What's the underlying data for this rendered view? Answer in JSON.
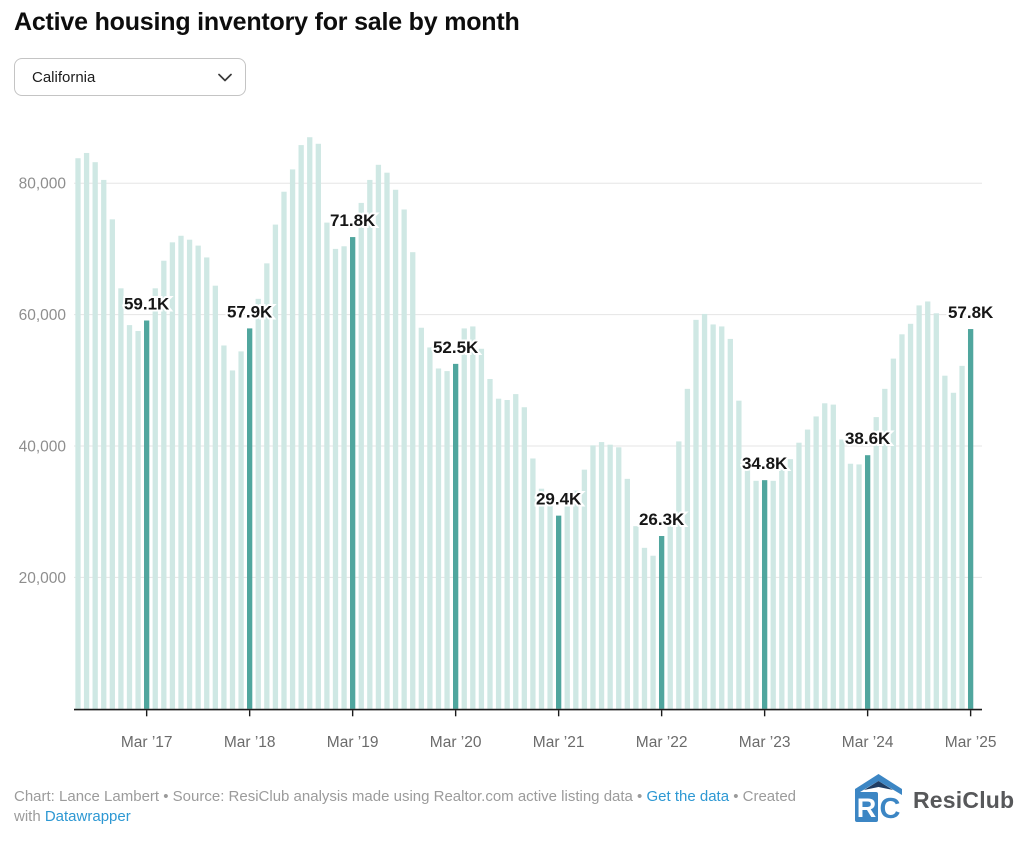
{
  "title": "Active housing inventory for sale by month",
  "region_selector": {
    "value": "California"
  },
  "chart_data": {
    "type": "bar",
    "title": "Active housing inventory for sale by month",
    "unit": "active listings for sale",
    "highlight_rule": "March bars shown in dark teal with value labels",
    "grid": true,
    "legend": null,
    "ylim": [
      0,
      91000
    ],
    "x": [
      "Jul 2016",
      "Aug 2016",
      "Sep 2016",
      "Oct 2016",
      "Nov 2016",
      "Dec 2016",
      "Jan 2017",
      "Feb 2017",
      "Mar 2017",
      "Apr 2017",
      "May 2017",
      "Jun 2017",
      "Jul 2017",
      "Aug 2017",
      "Sep 2017",
      "Oct 2017",
      "Nov 2017",
      "Dec 2017",
      "Jan 2018",
      "Feb 2018",
      "Mar 2018",
      "Apr 2018",
      "May 2018",
      "Jun 2018",
      "Jul 2018",
      "Aug 2018",
      "Sep 2018",
      "Oct 2018",
      "Nov 2018",
      "Dec 2018",
      "Jan 2019",
      "Feb 2019",
      "Mar 2019",
      "Apr 2019",
      "May 2019",
      "Jun 2019",
      "Jul 2019",
      "Aug 2019",
      "Sep 2019",
      "Oct 2019",
      "Nov 2019",
      "Dec 2019",
      "Jan 2020",
      "Feb 2020",
      "Mar 2020",
      "Apr 2020",
      "May 2020",
      "Jun 2020",
      "Jul 2020",
      "Aug 2020",
      "Sep 2020",
      "Oct 2020",
      "Nov 2020",
      "Dec 2020",
      "Jan 2021",
      "Feb 2021",
      "Mar 2021",
      "Apr 2021",
      "May 2021",
      "Jun 2021",
      "Jul 2021",
      "Aug 2021",
      "Sep 2021",
      "Oct 2021",
      "Nov 2021",
      "Dec 2021",
      "Jan 2022",
      "Feb 2022",
      "Mar 2022",
      "Apr 2022",
      "May 2022",
      "Jun 2022",
      "Jul 2022",
      "Aug 2022",
      "Sep 2022",
      "Oct 2022",
      "Nov 2022",
      "Dec 2022",
      "Jan 2023",
      "Feb 2023",
      "Mar 2023",
      "Apr 2023",
      "May 2023",
      "Jun 2023",
      "Jul 2023",
      "Aug 2023",
      "Sep 2023",
      "Oct 2023",
      "Nov 2023",
      "Dec 2023",
      "Jan 2024",
      "Feb 2024",
      "Mar 2024",
      "Apr 2024",
      "May 2024",
      "Jun 2024",
      "Jul 2024",
      "Aug 2024",
      "Sep 2024",
      "Oct 2024",
      "Nov 2024",
      "Dec 2024",
      "Jan 2025",
      "Feb 2025",
      "Mar 2025"
    ],
    "values": [
      83800,
      84600,
      83200,
      80500,
      74500,
      64000,
      58400,
      57500,
      59100,
      64000,
      68200,
      71000,
      72000,
      71400,
      70500,
      68700,
      64400,
      55300,
      51500,
      54400,
      57900,
      62400,
      67800,
      73700,
      78700,
      82100,
      85800,
      87000,
      86000,
      74000,
      70000,
      70400,
      71800,
      77000,
      80500,
      82800,
      81600,
      79000,
      76000,
      69500,
      58000,
      55000,
      51800,
      51400,
      52500,
      57900,
      58200,
      54800,
      50200,
      47200,
      47000,
      47900,
      45900,
      38100,
      33500,
      31200,
      29400,
      31800,
      33200,
      36400,
      40100,
      40600,
      40200,
      39800,
      35000,
      27800,
      24500,
      23300,
      26300,
      29000,
      40700,
      48700,
      59200,
      60100,
      58500,
      58200,
      56300,
      46900,
      38400,
      34700,
      34800,
      34700,
      36400,
      38000,
      40500,
      42500,
      44500,
      46500,
      46300,
      41000,
      37300,
      37200,
      38600,
      44400,
      48700,
      53300,
      57000,
      58600,
      61400,
      62000,
      60200,
      50700,
      48100,
      52200,
      57800
    ],
    "bar_labels": [
      {
        "month": "Mar 2017",
        "label": "59.1K"
      },
      {
        "month": "Mar 2018",
        "label": "57.9K"
      },
      {
        "month": "Mar 2019",
        "label": "71.8K"
      },
      {
        "month": "Mar 2020",
        "label": "52.5K"
      },
      {
        "month": "Mar 2021",
        "label": "29.4K"
      },
      {
        "month": "Mar 2022",
        "label": "26.3K"
      },
      {
        "month": "Mar 2023",
        "label": "34.8K"
      },
      {
        "month": "Mar 2024",
        "label": "38.6K"
      },
      {
        "month": "Mar 2025",
        "label": "57.8K"
      }
    ],
    "x_tick_labels": [
      "Mar ’17",
      "Mar ’18",
      "Mar ’19",
      "Mar ’20",
      "Mar ’21",
      "Mar ’22",
      "Mar ’23",
      "Mar ’24",
      "Mar ’25"
    ],
    "y_tick_labels": [
      {
        "value": 20000,
        "label": "20,000"
      },
      {
        "value": 40000,
        "label": "40,000"
      },
      {
        "value": 60000,
        "label": "60,000"
      },
      {
        "value": 80000,
        "label": "80,000"
      }
    ],
    "colors": {
      "bar": "#cfe8e4",
      "highlight": "#50a69e",
      "grid": "#e5e5e5",
      "axis": "#1a1a1a",
      "value_label": "#161616",
      "x_tick_label": "#6b6b6b",
      "y_tick_label": "#8e8e8e"
    }
  },
  "footer": {
    "parts": [
      {
        "text": "Chart: Lance Lambert • Source: ResiClub analysis made using Realtor.com active listing data • "
      },
      {
        "text": "Get the data",
        "link": true,
        "name": "get-the-data-link"
      },
      {
        "text": " • Created"
      },
      {
        "br": true
      },
      {
        "text": "with "
      },
      {
        "text": "Datawrapper",
        "link": true,
        "name": "datawrapper-link"
      }
    ]
  },
  "logo": {
    "text": "ResiClub",
    "mark_letters": "RC",
    "blue": "#3c86c4",
    "dark_blue": "#1f3d63",
    "text_color": "#57585a"
  }
}
